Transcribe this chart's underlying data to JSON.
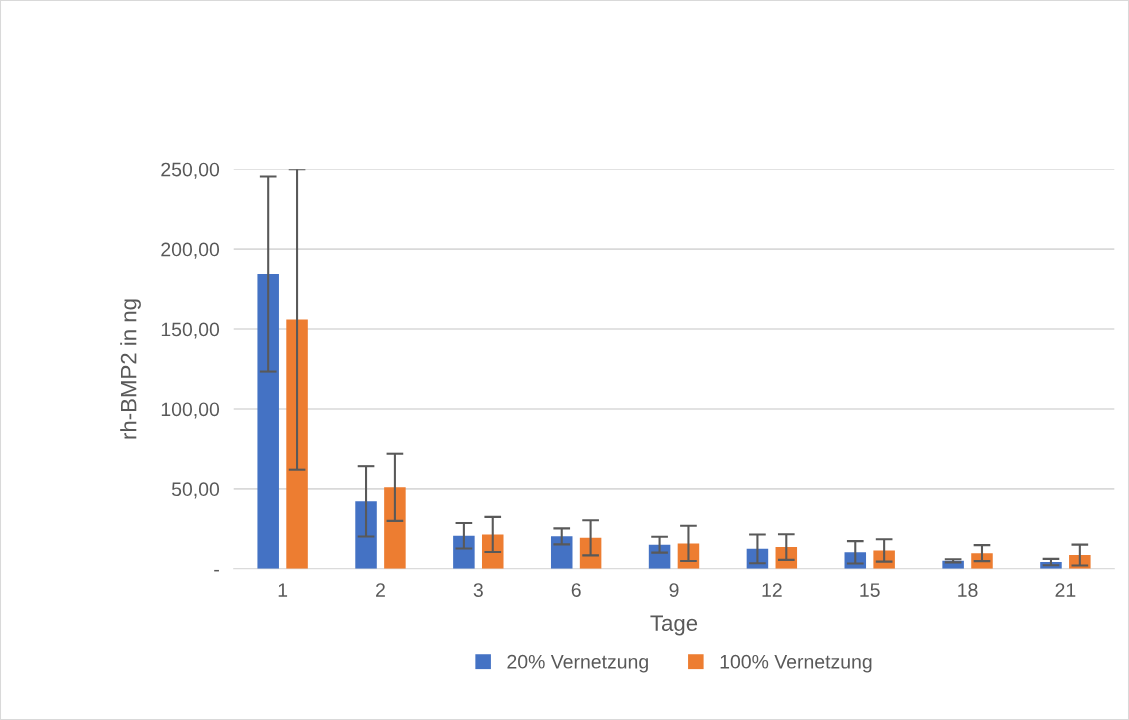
{
  "chart_data": {
    "type": "bar",
    "xlabel": "Tage",
    "ylabel": "rh-BMP2 in ng",
    "categories": [
      "1",
      "2",
      "3",
      "6",
      "9",
      "12",
      "15",
      "18",
      "21"
    ],
    "series": [
      {
        "name": "20% Vernetzung",
        "color": "#4472c4",
        "values": [
          184.4,
          42.2,
          20.7,
          20.3,
          15.1,
          12.5,
          10.3,
          5.0,
          4.2
        ],
        "errors": [
          61,
          22,
          8,
          5,
          5,
          9,
          7,
          1,
          2
        ]
      },
      {
        "name": "100% Vernetzung",
        "color": "#ed7d31",
        "values": [
          156.0,
          51.0,
          21.5,
          19.4,
          15.9,
          13.6,
          11.5,
          9.8,
          8.6
        ],
        "errors": [
          94,
          21,
          11,
          11,
          11,
          8,
          7,
          5,
          6.5
        ]
      }
    ],
    "ylim": [
      0,
      250
    ],
    "yticks": [
      {
        "value": 0,
        "label": "-"
      },
      {
        "value": 50,
        "label": "50,00"
      },
      {
        "value": 100,
        "label": "100,00"
      },
      {
        "value": 150,
        "label": "150,00"
      },
      {
        "value": 200,
        "label": "200,00"
      },
      {
        "value": 250,
        "label": "250,00"
      }
    ],
    "grid": "y",
    "legend": "bottom"
  }
}
